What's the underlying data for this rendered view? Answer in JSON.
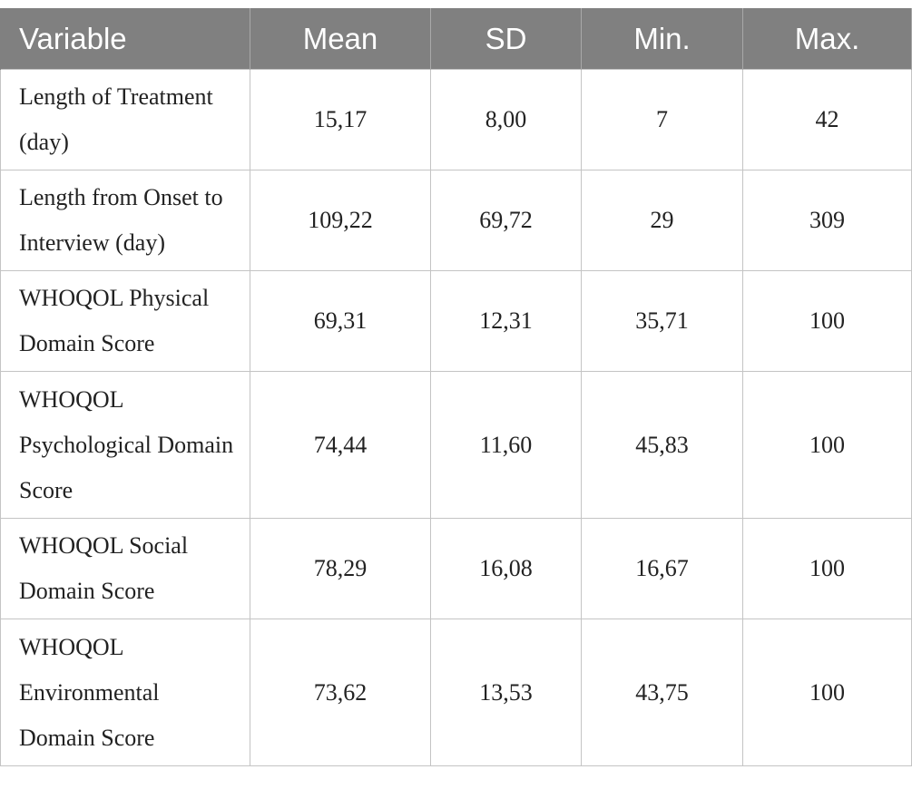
{
  "table": {
    "headers": [
      "Variable",
      "Mean",
      "SD",
      "Min.",
      "Max."
    ],
    "rows": [
      {
        "variable": "Length of Treatment (day)",
        "mean": "15,17",
        "sd": "8,00",
        "min": "7",
        "max": "42"
      },
      {
        "variable": "Length from Onset to Interview (day)",
        "mean": "109,22",
        "sd": "69,72",
        "min": "29",
        "max": "309"
      },
      {
        "variable": "WHOQOL Physical Domain Score",
        "mean": "69,31",
        "sd": "12,31",
        "min": "35,71",
        "max": "100"
      },
      {
        "variable": "WHOQOL Psychological Domain Score",
        "mean": "74,44",
        "sd": "11,60",
        "min": "45,83",
        "max": "100"
      },
      {
        "variable": "WHOQOL Social Domain Score",
        "mean": "78,29",
        "sd": "16,08",
        "min": "16,67",
        "max": "100"
      },
      {
        "variable": "WHOQOL Environmental Domain Score",
        "mean": "73,62",
        "sd": "13,53",
        "min": "43,75",
        "max": "100"
      }
    ]
  }
}
